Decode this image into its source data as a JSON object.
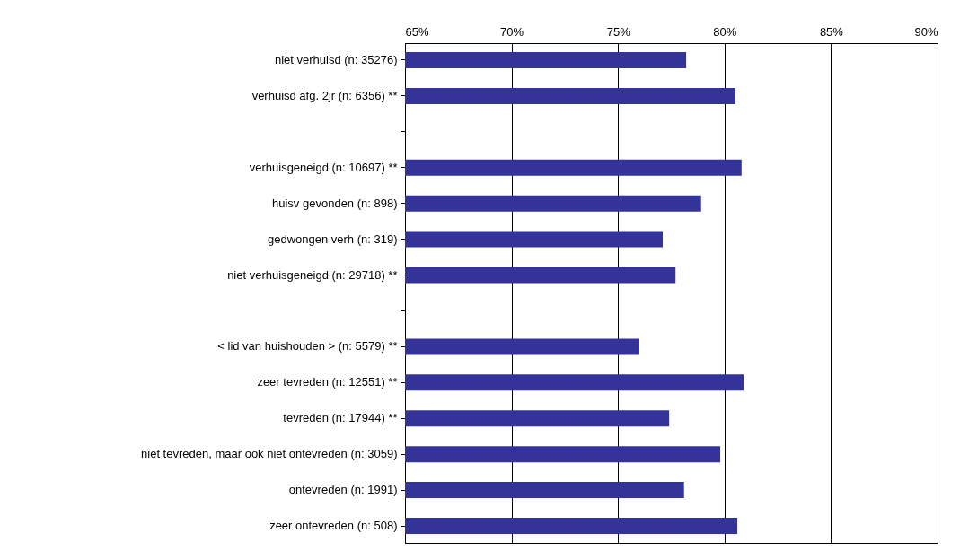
{
  "chart_data": {
    "type": "bar",
    "orientation": "horizontal",
    "categories": [
      "niet verhuisd (n: 35276)",
      "verhuisd afg. 2jr (n: 6356) **",
      null,
      "verhuisgeneigd (n: 10697) **",
      "huisv gevonden (n: 898)",
      "gedwongen verh (n: 319)",
      "niet verhuisgeneigd (n: 29718) **",
      null,
      "< lid van huishouden > (n: 5579) **",
      "zeer tevreden (n: 12551) **",
      "tevreden (n: 17944) **",
      "niet tevreden, maar ook niet ontevreden (n: 3059)",
      "ontevreden (n: 1991)",
      "zeer ontevreden (n: 508)"
    ],
    "values": [
      78.2,
      80.5,
      null,
      80.8,
      78.9,
      77.1,
      77.7,
      null,
      76.0,
      80.9,
      77.4,
      79.8,
      78.1,
      80.6
    ],
    "color": "#333399",
    "xlim": [
      65,
      90
    ],
    "xticks": [
      {
        "value": 65,
        "label": "65%"
      },
      {
        "value": 70,
        "label": "70%"
      },
      {
        "value": 75,
        "label": "75%"
      },
      {
        "value": 80,
        "label": "80%"
      },
      {
        "value": 85,
        "label": "85%"
      },
      {
        "value": 90,
        "label": "90%"
      }
    ],
    "grid": "x"
  }
}
